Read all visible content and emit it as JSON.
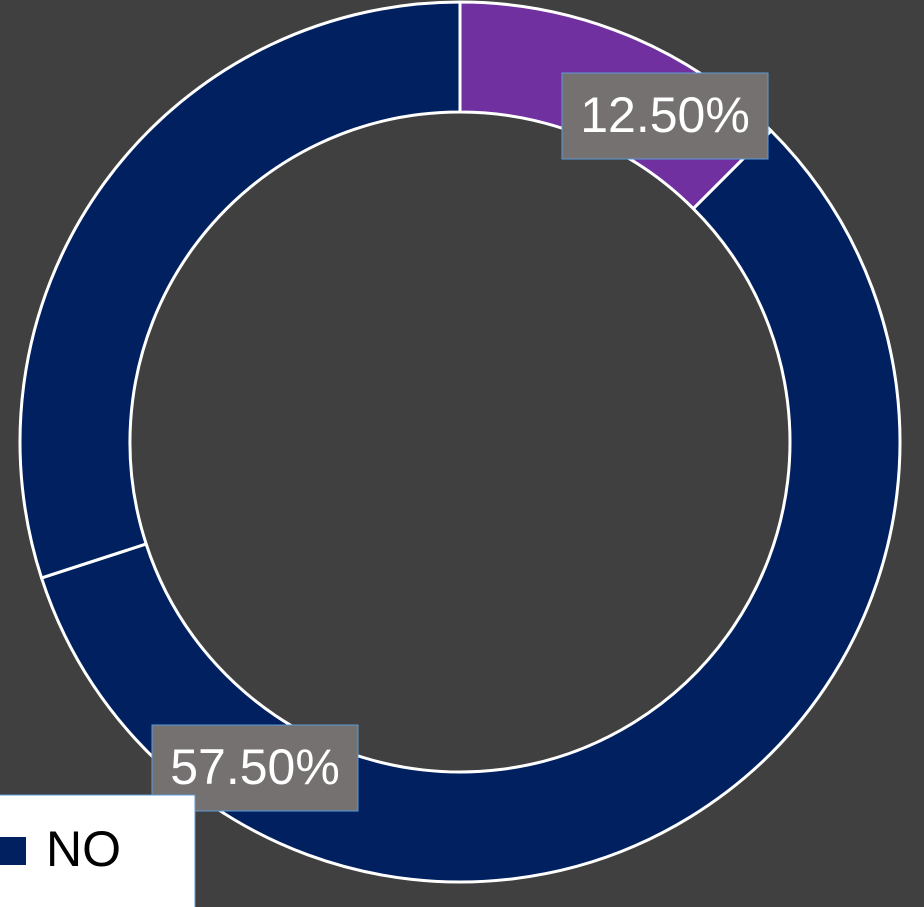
{
  "chart_data": {
    "type": "donut",
    "categories": [
      null,
      "NO",
      null
    ],
    "values": [
      12.5,
      57.5,
      30
    ],
    "value_labels": [
      "12.50%",
      "57.50%",
      null
    ],
    "colors": [
      "#7030a0",
      "#002060",
      "#002060"
    ]
  }
}
